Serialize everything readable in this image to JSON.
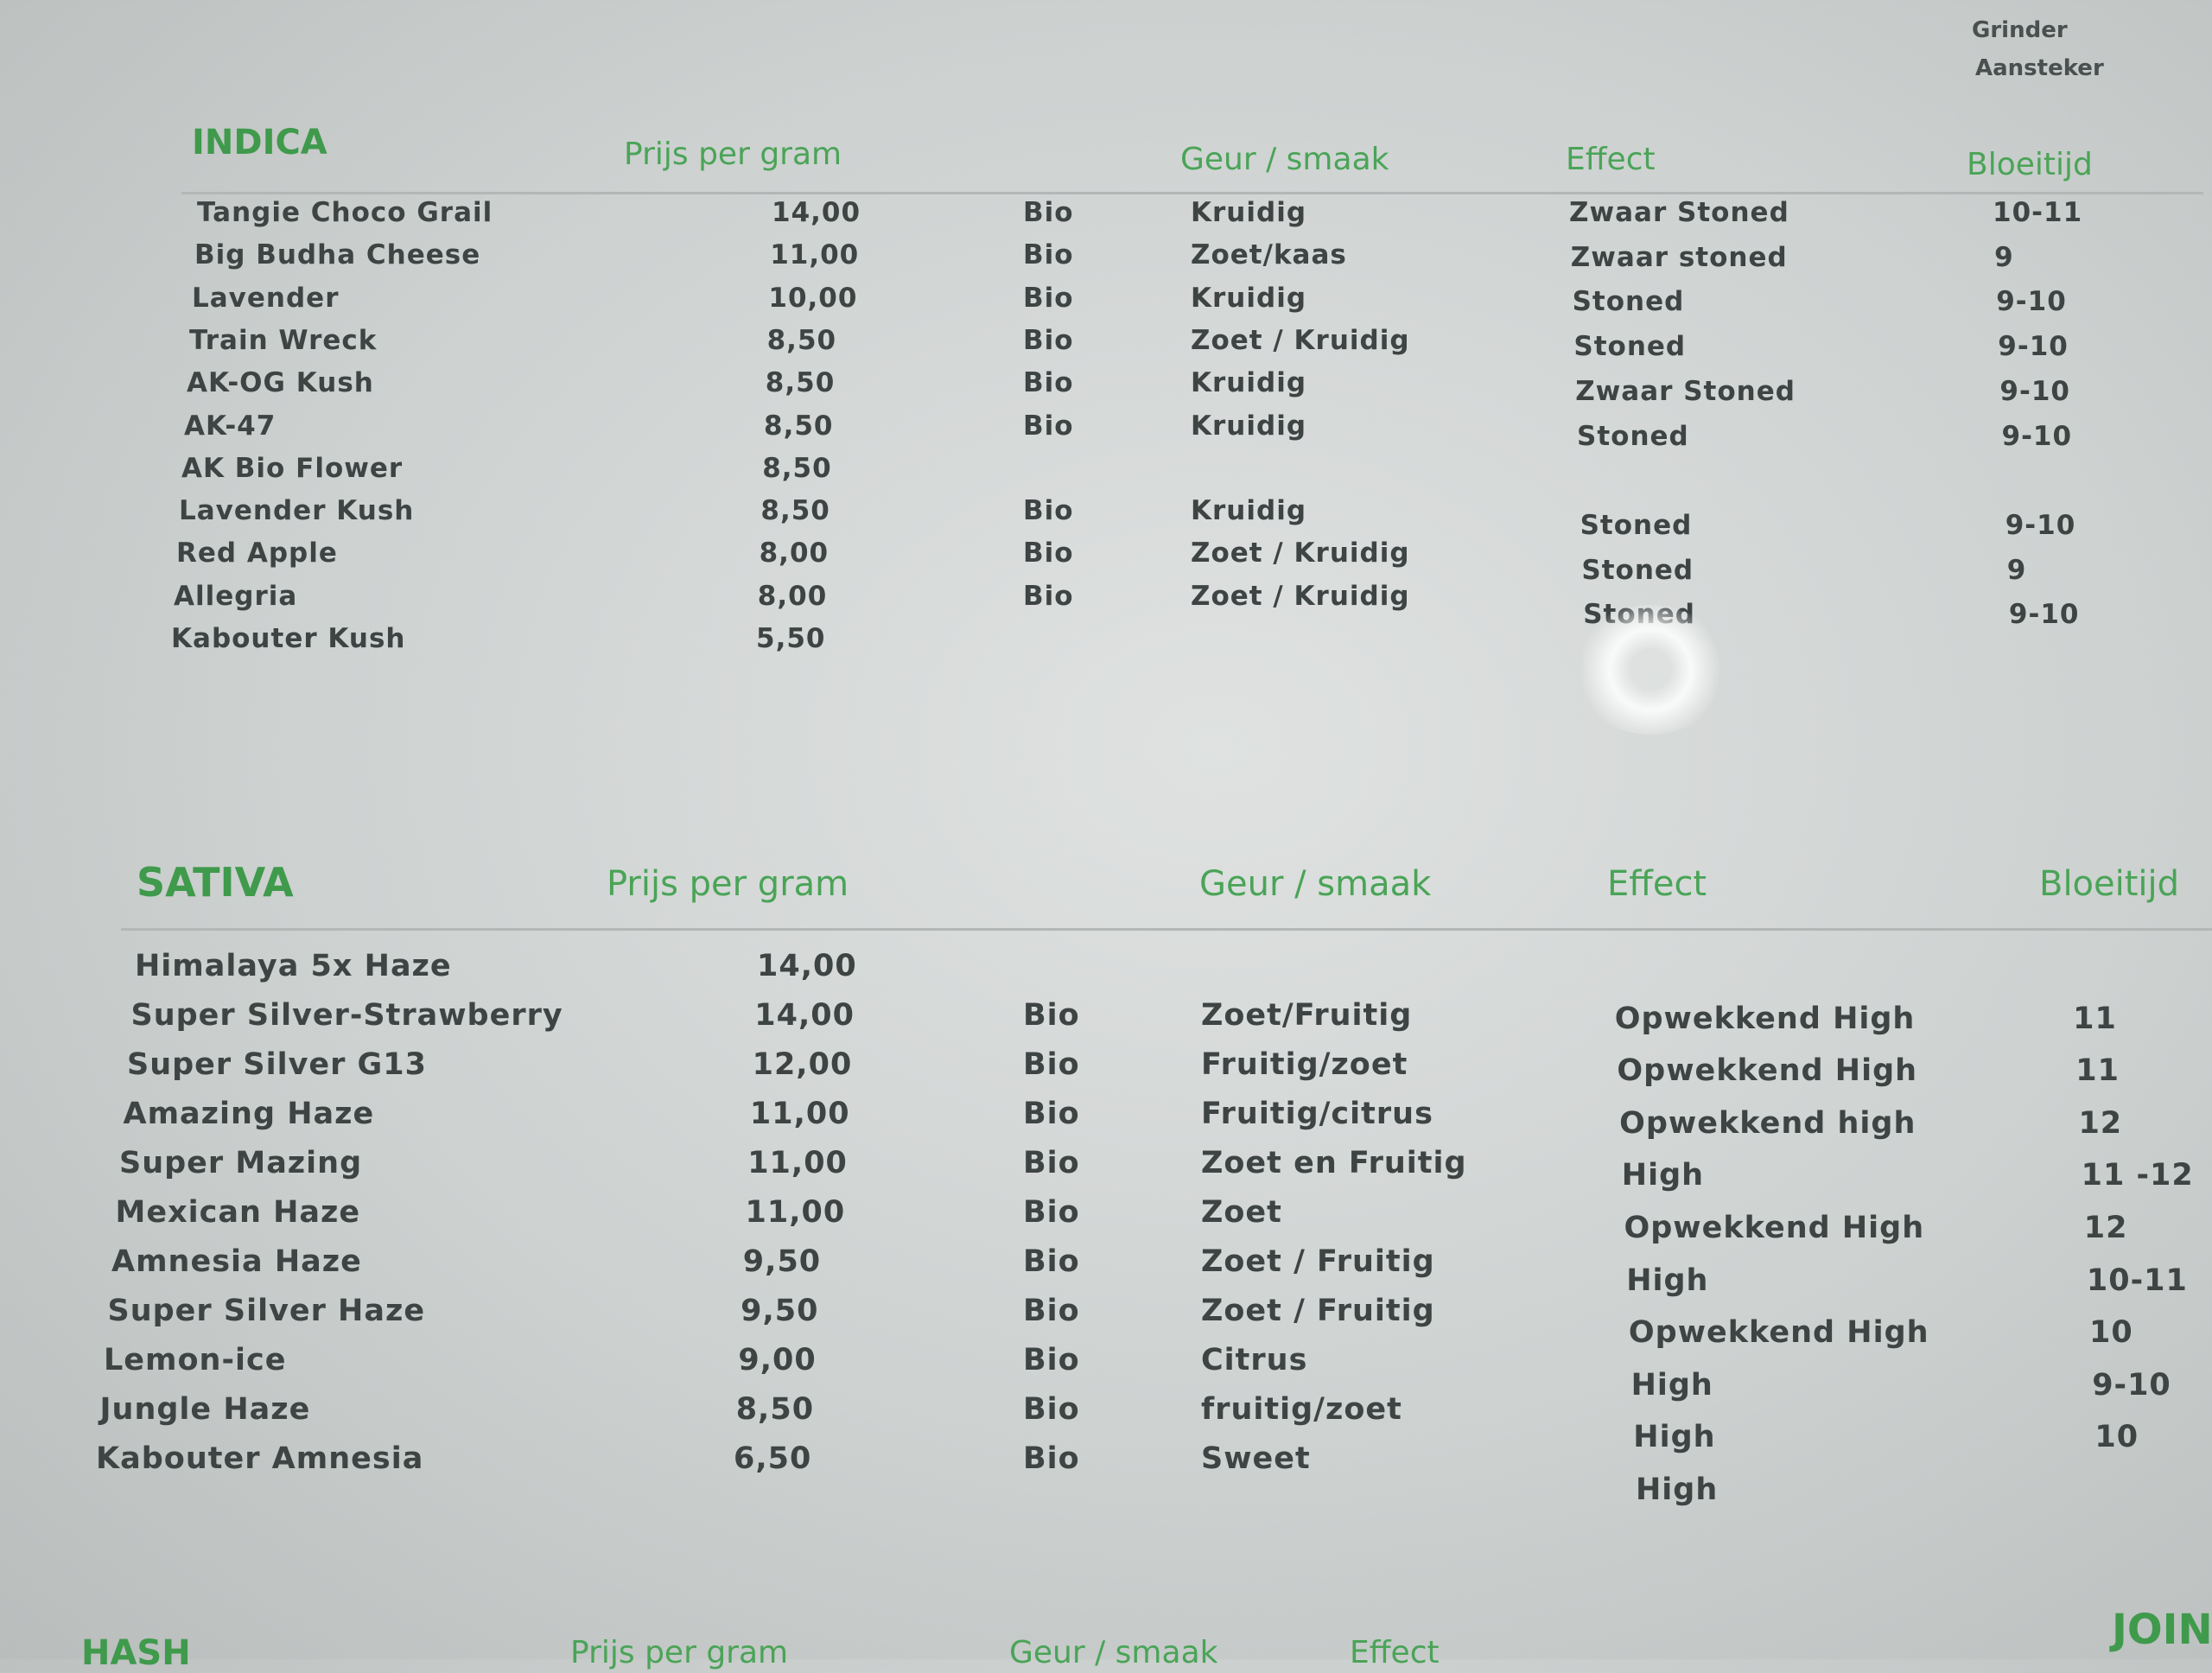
{
  "top_right": {
    "items": [
      "Grinder",
      "Aansteker"
    ]
  },
  "indica": {
    "title": "INDICA",
    "columns": {
      "price": "Prijs per gram",
      "taste": "Geur / smaak",
      "effect": "Effect",
      "bloom": "Bloeitijd"
    },
    "rows": [
      {
        "name": "Tangie Choco Grail",
        "price": "14,00",
        "bio": "Bio",
        "taste": "Kruidig",
        "effect": "Zwaar Stoned",
        "bloom": "10-11"
      },
      {
        "name": "Big Budha Cheese",
        "price": "11,00",
        "bio": "Bio",
        "taste": "Zoet/kaas",
        "effect": "Zwaar stoned",
        "bloom": "9"
      },
      {
        "name": "Lavender",
        "price": "10,00",
        "bio": "Bio",
        "taste": "Kruidig",
        "effect": "Stoned",
        "bloom": "9-10"
      },
      {
        "name": "Train Wreck",
        "price": "8,50",
        "bio": "Bio",
        "taste": "Zoet / Kruidig",
        "effect": "Stoned",
        "bloom": "9-10"
      },
      {
        "name": "AK-OG Kush",
        "price": "8,50",
        "bio": "Bio",
        "taste": "Kruidig",
        "effect": "Zwaar Stoned",
        "bloom": "9-10"
      },
      {
        "name": "AK-47",
        "price": "8,50",
        "bio": "Bio",
        "taste": "Kruidig",
        "effect": "Stoned",
        "bloom": "9-10"
      },
      {
        "name": "AK Bio Flower",
        "price": "8,50",
        "bio": "",
        "taste": "",
        "effect": "",
        "bloom": ""
      },
      {
        "name": "Lavender Kush",
        "price": "8,50",
        "bio": "Bio",
        "taste": "Kruidig",
        "effect": "Stoned",
        "bloom": "9-10"
      },
      {
        "name": "Red Apple",
        "price": "8,00",
        "bio": "Bio",
        "taste": "Zoet / Kruidig",
        "effect": "Stoned",
        "bloom": "9"
      },
      {
        "name": "Allegria",
        "price": "8,00",
        "bio": "Bio",
        "taste": "Zoet / Kruidig",
        "effect": "Stoned",
        "bloom": "9-10"
      },
      {
        "name": "Kabouter Kush",
        "price": "5,50",
        "bio": "",
        "taste": "",
        "effect": "",
        "bloom": ""
      }
    ]
  },
  "sativa": {
    "title": "SATIVA",
    "columns": {
      "price": "Prijs per gram",
      "taste": "Geur / smaak",
      "effect": "Effect",
      "bloom": "Bloeitijd"
    },
    "rows": [
      {
        "name": "Himalaya 5x Haze",
        "price": "14,00",
        "bio": "",
        "taste": "",
        "effect": "",
        "bloom": ""
      },
      {
        "name": "Super Silver-Strawberry",
        "price": "14,00",
        "bio": "Bio",
        "taste": "Zoet/Fruitig",
        "effect": "Opwekkend High",
        "bloom": "11"
      },
      {
        "name": "Super Silver G13",
        "price": "12,00",
        "bio": "Bio",
        "taste": "Fruitig/zoet",
        "effect": "Opwekkend High",
        "bloom": "11"
      },
      {
        "name": "Amazing Haze",
        "price": "11,00",
        "bio": "Bio",
        "taste": "Fruitig/citrus",
        "effect": "Opwekkend high",
        "bloom": "12"
      },
      {
        "name": "Super Mazing",
        "price": "11,00",
        "bio": "Bio",
        "taste": "Zoet en Fruitig",
        "effect": "High",
        "bloom": "11 -12"
      },
      {
        "name": "Mexican Haze",
        "price": "11,00",
        "bio": "Bio",
        "taste": "Zoet",
        "effect": "Opwekkend High",
        "bloom": "12"
      },
      {
        "name": "Amnesia Haze",
        "price": "9,50",
        "bio": "Bio",
        "taste": "Zoet / Fruitig",
        "effect": "High",
        "bloom": "10-11"
      },
      {
        "name": "Super Silver Haze",
        "price": "9,50",
        "bio": "Bio",
        "taste": "Zoet / Fruitig",
        "effect": "Opwekkend High",
        "bloom": "10"
      },
      {
        "name": "Lemon-ice",
        "price": "9,00",
        "bio": "Bio",
        "taste": "Citrus",
        "effect": "High",
        "bloom": "9-10"
      },
      {
        "name": "Jungle Haze",
        "price": "8,50",
        "bio": "Bio",
        "taste": "fruitig/zoet",
        "effect": "High",
        "bloom": "10"
      },
      {
        "name": "Kabouter Amnesia",
        "price": "6,50",
        "bio": "Bio",
        "taste": "Sweet",
        "effect": "High",
        "bloom": ""
      }
    ]
  },
  "hash": {
    "title": "HASH",
    "columns": {
      "price": "Prijs per gram",
      "taste": "Geur / smaak",
      "effect": "Effect"
    }
  },
  "joint": {
    "title": "JOINT"
  }
}
